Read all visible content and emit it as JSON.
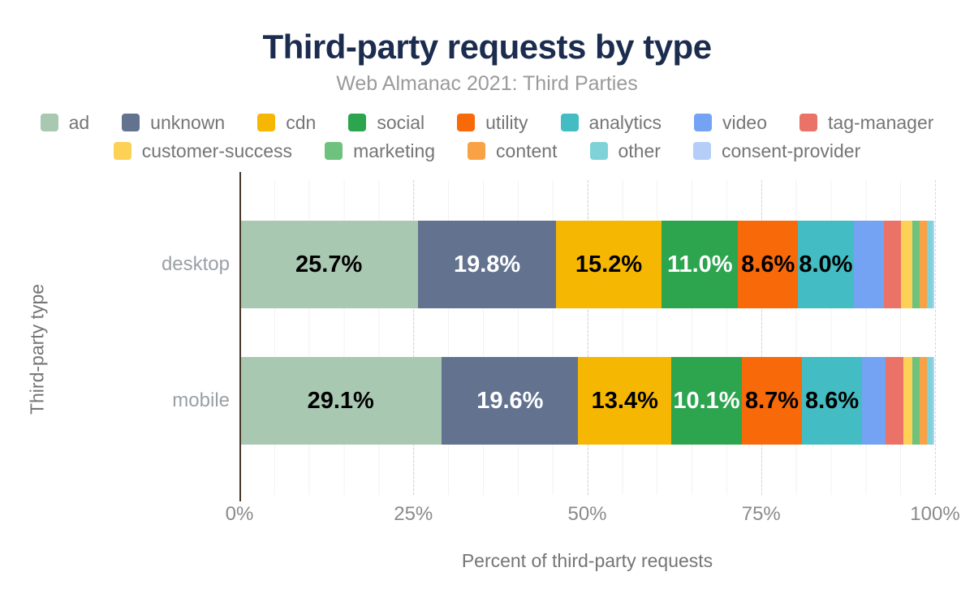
{
  "chart_data": {
    "type": "bar",
    "orientation": "horizontal",
    "stacked": true,
    "title": "Third-party requests by type",
    "subtitle": "Web Almanac 2021: Third Parties",
    "xlabel": "Percent of third-party requests",
    "ylabel": "Third-party type",
    "xlim": [
      0,
      100
    ],
    "x_ticks": [
      {
        "label": "0%",
        "value": 0
      },
      {
        "label": "25%",
        "value": 25
      },
      {
        "label": "50%",
        "value": 50
      },
      {
        "label": "75%",
        "value": 75
      },
      {
        "label": "100%",
        "value": 100
      }
    ],
    "grid": {
      "minor_interval_pct": 5,
      "major_interval_pct": 25,
      "major_style": "dashed"
    },
    "legend_position": "top",
    "categories": [
      "desktop",
      "mobile"
    ],
    "segments": [
      "ad",
      "unknown",
      "cdn",
      "social",
      "utility",
      "analytics",
      "video",
      "tag-manager",
      "customer-success",
      "marketing",
      "content",
      "other",
      "consent-provider"
    ],
    "colors": [
      "#a9c8b2",
      "#62728f",
      "#f5b701",
      "#2da44e",
      "#f8690a",
      "#43bcc3",
      "#75a3f3",
      "#eb7266",
      "#fcd155",
      "#6ec27e",
      "#f9a245",
      "#7fd3d8",
      "#b5cef7"
    ],
    "series": [
      {
        "name": "desktop",
        "values": [
          25.7,
          19.8,
          15.2,
          11.0,
          8.6,
          8.0,
          4.3,
          2.5,
          1.6,
          1.1,
          1.1,
          0.8,
          0.2
        ],
        "labels": [
          "25.7%",
          "19.8%",
          "15.2%",
          "11.0%",
          "8.6%",
          "8.0%",
          "",
          "",
          "",
          "",
          "",
          "",
          ""
        ],
        "label_colors": [
          "#000000",
          "#ffffff",
          "#000000",
          "#ffffff",
          "#000000",
          "#000000",
          "",
          "",
          "",
          "",
          "",
          "",
          ""
        ]
      },
      {
        "name": "mobile",
        "values": [
          29.1,
          19.6,
          13.4,
          10.1,
          8.7,
          8.6,
          3.4,
          2.5,
          1.4,
          1.0,
          1.1,
          0.8,
          0.2
        ],
        "labels": [
          "29.1%",
          "19.6%",
          "13.4%",
          "10.1%",
          "8.7%",
          "8.6%",
          "",
          "",
          "",
          "",
          "",
          "",
          ""
        ],
        "label_colors": [
          "#000000",
          "#ffffff",
          "#000000",
          "#ffffff",
          "#000000",
          "#000000",
          "",
          "",
          "",
          "",
          "",
          "",
          ""
        ]
      }
    ]
  }
}
